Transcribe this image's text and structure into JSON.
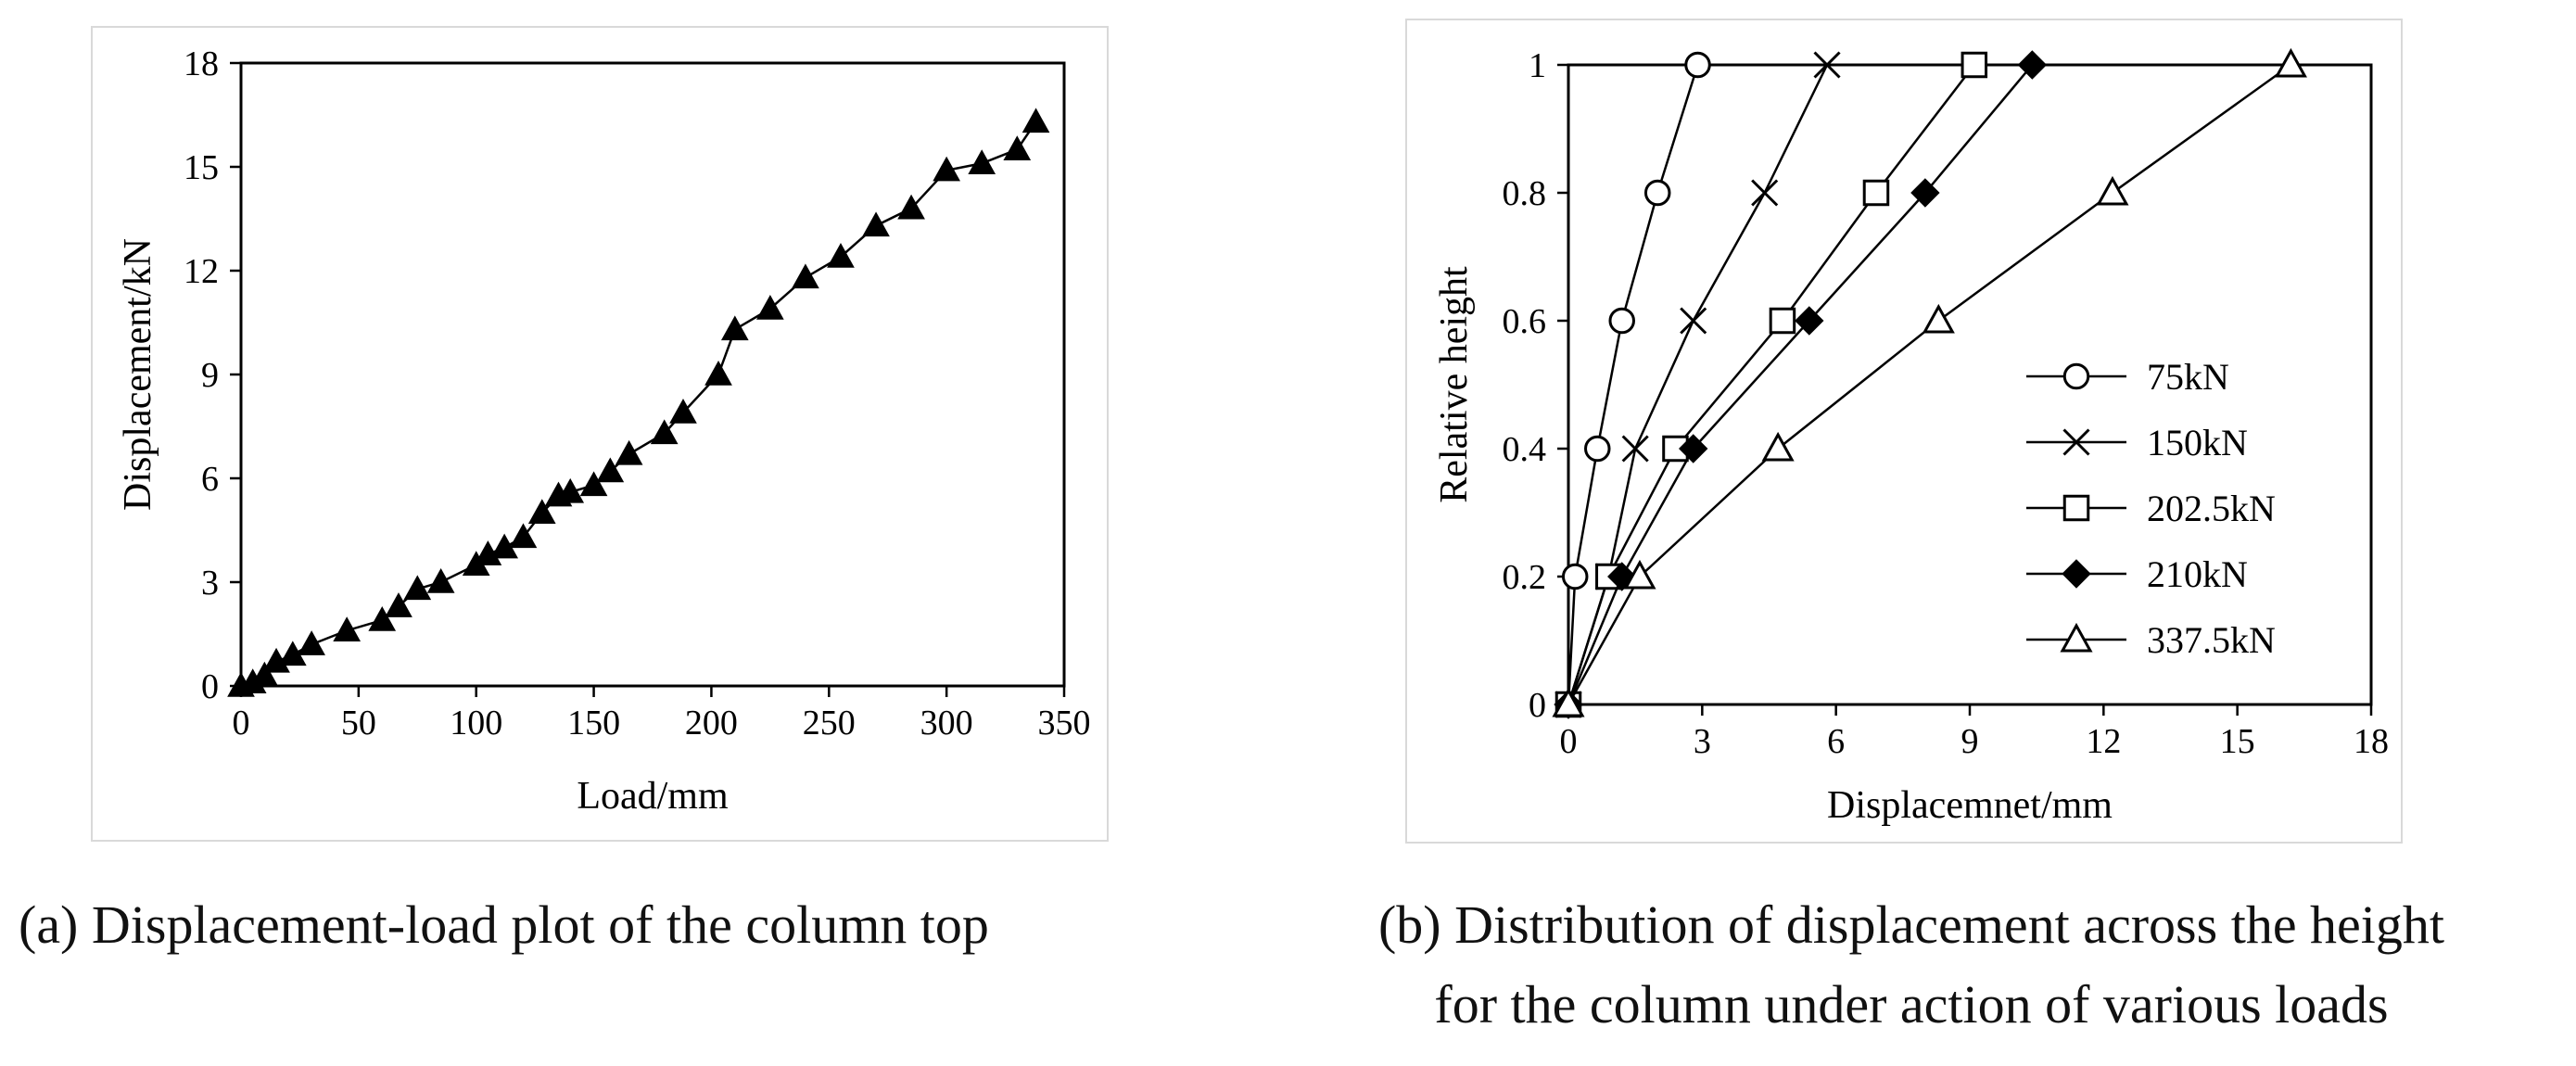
{
  "chart_data": [
    {
      "type": "line",
      "xlabel": "Load/mm",
      "ylabel": "Displacement/kN",
      "xlim": [
        0,
        350
      ],
      "ylim": [
        0,
        18
      ],
      "xticks": [
        0,
        50,
        100,
        150,
        200,
        250,
        300,
        350
      ],
      "yticks": [
        0,
        3,
        6,
        9,
        12,
        15,
        18
      ],
      "grid": false,
      "marker": "filled-triangle",
      "color": "#000000",
      "series": [
        {
          "x": [
            0,
            5,
            10,
            15,
            22,
            30,
            45,
            60,
            67,
            75,
            85,
            100,
            105,
            112,
            120,
            128,
            135,
            140,
            150,
            157,
            165,
            180,
            188,
            203,
            210,
            225,
            240,
            255,
            270,
            285,
            300,
            315,
            330,
            338
          ],
          "y": [
            0,
            0.1,
            0.3,
            0.7,
            0.9,
            1.2,
            1.6,
            1.9,
            2.3,
            2.8,
            3.0,
            3.5,
            3.8,
            4.0,
            4.3,
            5.0,
            5.5,
            5.6,
            5.8,
            6.2,
            6.7,
            7.3,
            7.9,
            9.0,
            10.3,
            10.9,
            11.8,
            12.4,
            13.3,
            13.8,
            14.9,
            15.1,
            15.5,
            16.3
          ]
        }
      ]
    },
    {
      "type": "line",
      "xlabel": "Displacemnet/mm",
      "ylabel": "Relative height",
      "xlim": [
        0,
        18
      ],
      "ylim": [
        0,
        1
      ],
      "xticks": [
        0,
        3,
        6,
        9,
        12,
        15,
        18
      ],
      "yticks": [
        0,
        0.2,
        0.4,
        0.6,
        0.8,
        1
      ],
      "ytick_labels": [
        "0",
        "0.2",
        "0.4",
        "0.6",
        "0.8",
        "1"
      ],
      "grid": false,
      "legend": "right",
      "series": [
        {
          "name": "75kN",
          "marker": "open-circle",
          "x": [
            0,
            0.15,
            0.65,
            1.2,
            2.0,
            2.9
          ],
          "y": [
            0,
            0.2,
            0.4,
            0.6,
            0.8,
            1.0
          ]
        },
        {
          "name": "150kN",
          "marker": "cross",
          "x": [
            0,
            0.9,
            1.5,
            2.8,
            4.4,
            5.8
          ],
          "y": [
            0,
            0.2,
            0.4,
            0.6,
            0.8,
            1.0
          ]
        },
        {
          "name": "202.5kN",
          "marker": "open-square",
          "x": [
            0,
            0.9,
            2.4,
            4.8,
            6.9,
            9.1
          ],
          "y": [
            0,
            0.2,
            0.4,
            0.6,
            0.8,
            1.0
          ]
        },
        {
          "name": "210kN",
          "marker": "filled-diamond",
          "x": [
            0,
            1.2,
            2.8,
            5.4,
            8.0,
            10.4
          ],
          "y": [
            0,
            0.2,
            0.4,
            0.6,
            0.8,
            1.0
          ]
        },
        {
          "name": "337.5kN",
          "marker": "open-triangle",
          "x": [
            0,
            1.6,
            4.7,
            8.3,
            12.2,
            16.2
          ],
          "y": [
            0,
            0.2,
            0.4,
            0.6,
            0.8,
            1.0
          ]
        }
      ]
    }
  ],
  "captions": {
    "a": "(a) Displacement-load plot of the column top",
    "b_line1": "(b) Distribution of displacement across the height",
    "b_line2": "for the column under action of various loads"
  }
}
